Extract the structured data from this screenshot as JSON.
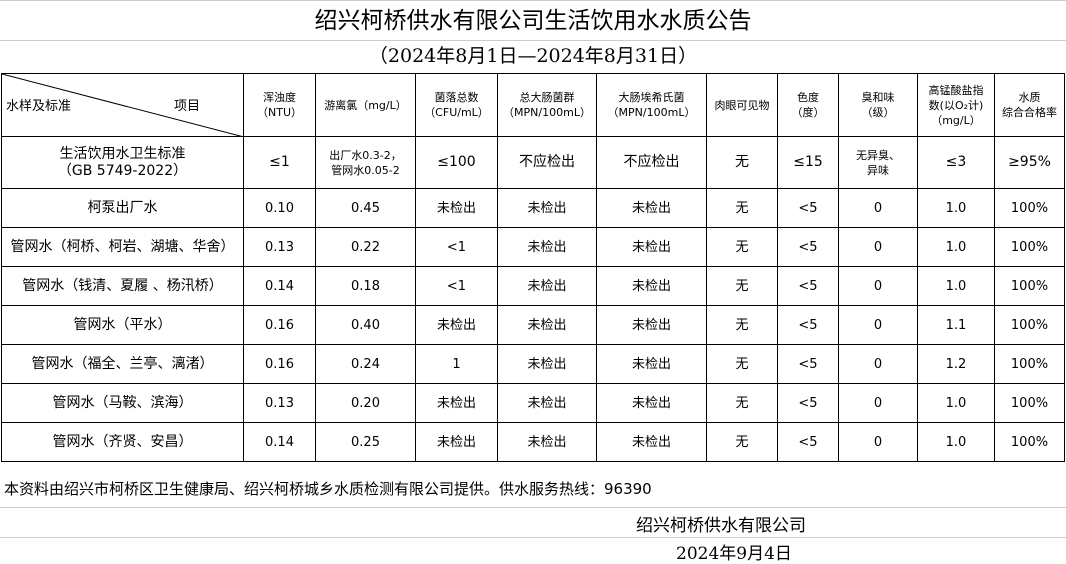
{
  "title": "绍兴柯桥供水有限公司生活饮用水水质公告",
  "subtitle": "（2024年8月1日—2024年8月31日）",
  "table": {
    "corner": {
      "left": "水样及标准",
      "right": "项目"
    },
    "headers": [
      [
        "浑浊度",
        "（NTU）"
      ],
      [
        "游离氯（mg/L）"
      ],
      [
        "菌落总数",
        "（CFU/mL）"
      ],
      [
        "总大肠菌群",
        "（MPN/100mL）"
      ],
      [
        "大肠埃希氏菌",
        "（MPN/100mL）"
      ],
      [
        "肉眼可见物"
      ],
      [
        "色度",
        "（度）"
      ],
      [
        "臭和味",
        "（级）"
      ],
      [
        "高锰酸盐指",
        "数(以O₂计)",
        "（mg/L）"
      ],
      [
        "水质",
        "综合合格率"
      ]
    ],
    "standard": {
      "name": [
        "生活饮用水卫生标准",
        "（GB 5749-2022）"
      ],
      "values": [
        "≤1",
        "出厂水0.3-2，\n管网水0.05-2",
        "≤100",
        "不应检出",
        "不应检出",
        "无",
        "≤15",
        "无异臭、\n异味",
        "≤3",
        "≥95%"
      ]
    },
    "rows": [
      {
        "name": "柯泵出厂水",
        "values": [
          "0.10",
          "0.45",
          "未检出",
          "未检出",
          "未检出",
          "无",
          "<5",
          "0",
          "1.0",
          "100%"
        ]
      },
      {
        "name": "管网水（柯桥、柯岩、湖塘、华舍）",
        "values": [
          "0.13",
          "0.22",
          "<1",
          "未检出",
          "未检出",
          "无",
          "<5",
          "0",
          "1.0",
          "100%"
        ]
      },
      {
        "name": "管网水（钱清、夏履 、杨汛桥）",
        "values": [
          "0.14",
          "0.18",
          "<1",
          "未检出",
          "未检出",
          "无",
          "<5",
          "0",
          "1.0",
          "100%"
        ]
      },
      {
        "name": "管网水（平水）",
        "values": [
          "0.16",
          "0.40",
          "未检出",
          "未检出",
          "未检出",
          "无",
          "<5",
          "0",
          "1.1",
          "100%"
        ]
      },
      {
        "name": "管网水（福全、兰亭、漓渚）",
        "values": [
          "0.16",
          "0.24",
          "1",
          "未检出",
          "未检出",
          "无",
          "<5",
          "0",
          "1.2",
          "100%"
        ]
      },
      {
        "name": "管网水（马鞍、滨海）",
        "values": [
          "0.13",
          "0.20",
          "未检出",
          "未检出",
          "未检出",
          "无",
          "<5",
          "0",
          "1.0",
          "100%"
        ]
      },
      {
        "name": "管网水（齐贤、安昌）",
        "values": [
          "0.14",
          "0.25",
          "未检出",
          "未检出",
          "未检出",
          "无",
          "<5",
          "0",
          "1.0",
          "100%"
        ]
      }
    ]
  },
  "footer": {
    "note": "本资料由绍兴市柯桥区卫生健康局、绍兴柯桥城乡水质检测有限公司提供。供水服务热线：96390",
    "company": "绍兴柯桥供水有限公司",
    "date": "2024年9月4日"
  }
}
